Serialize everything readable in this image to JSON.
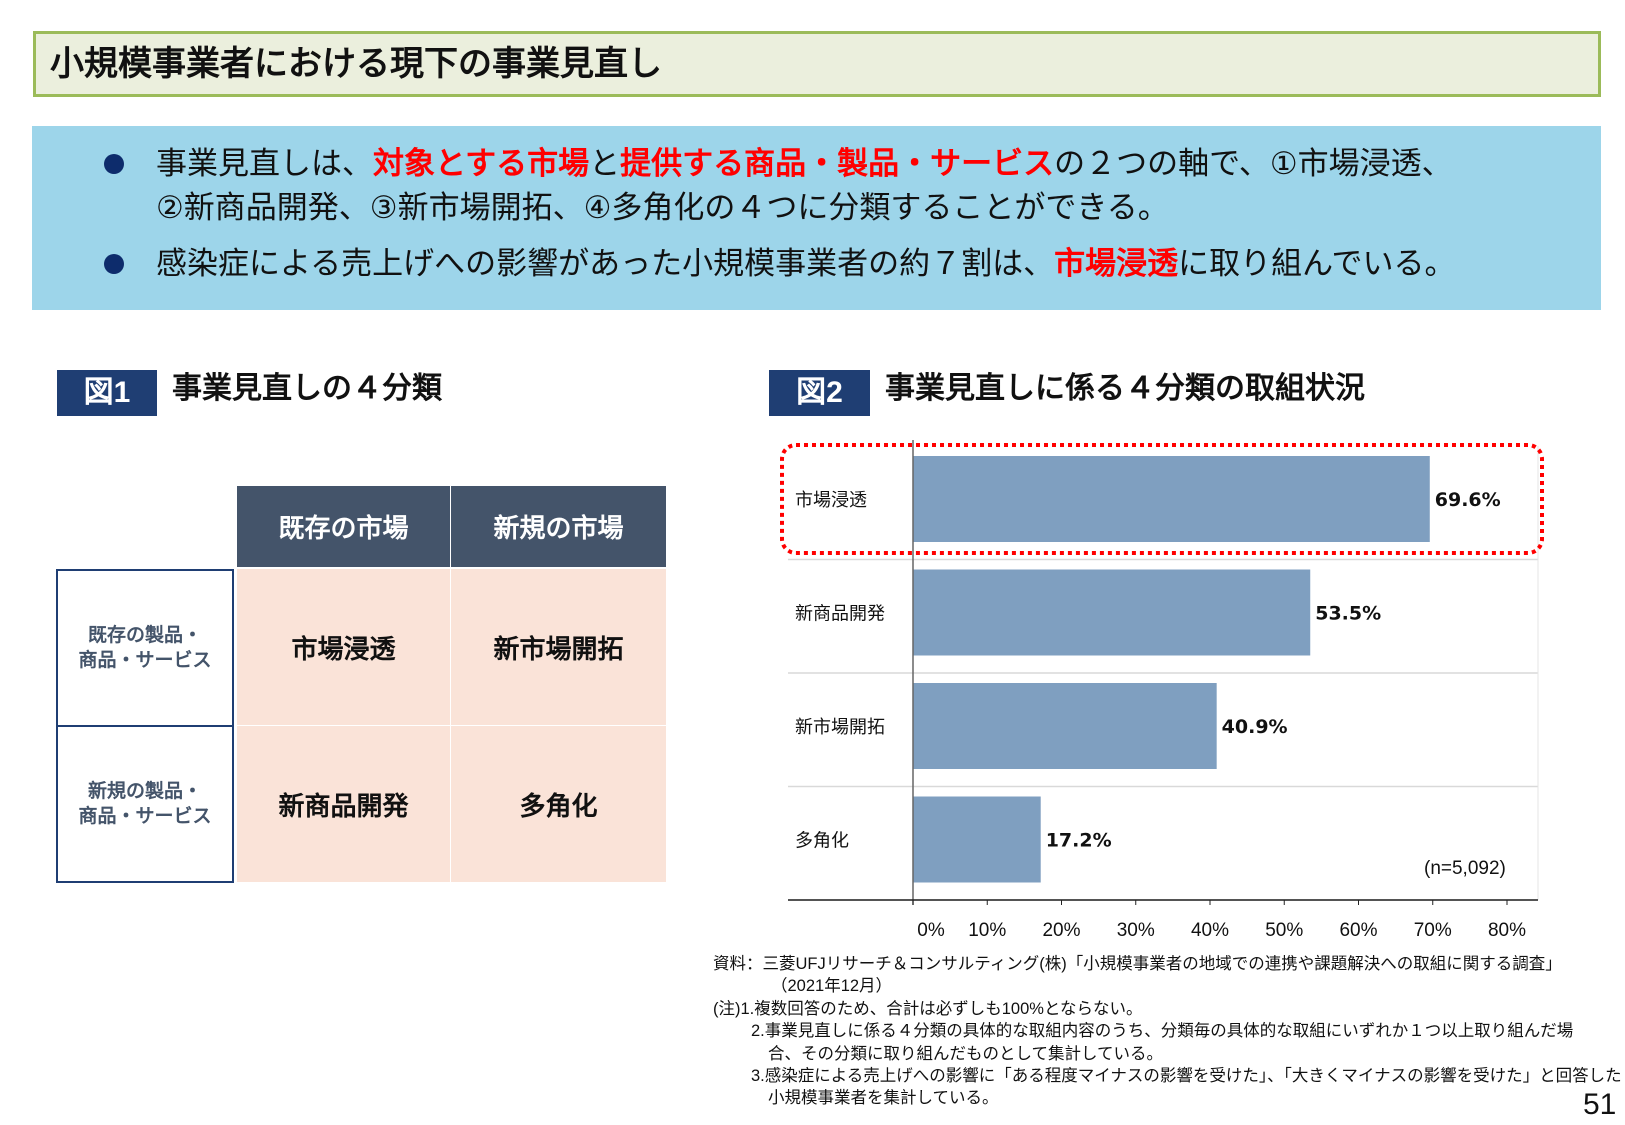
{
  "title": "小規模事業者における現下の事業見直し",
  "summary": {
    "bullet1": {
      "t1": "事業見直しは、",
      "r1": "対象とする市場",
      "t2": "と",
      "r2": "提供する商品・製品・サービス",
      "t3": "の２つの軸で、①市場浸透、",
      "line2": "②新商品開発、③新市場開拓、④多角化の４つに分類することができる。"
    },
    "bullet2": {
      "t1": "感染症による売上げへの影響があった小規模事業者の約７割は、",
      "r1": "市場浸透",
      "t2": "に取り組んでいる。"
    }
  },
  "fig1": {
    "label": "図1",
    "title": "事業見直しの４分類",
    "col_headers": [
      "既存の市場",
      "新規の市場"
    ],
    "row_headers": [
      [
        "既存の製品・",
        "商品・サービス"
      ],
      [
        "新規の製品・",
        "商品・サービス"
      ]
    ],
    "cells": [
      [
        "市場浸透",
        "新市場開拓"
      ],
      [
        "新商品開発",
        "多角化"
      ]
    ]
  },
  "fig2": {
    "label": "図2",
    "title": "事業見直しに係る４分類の取組状況",
    "note": "(n=5,092)"
  },
  "chart_data": {
    "type": "bar",
    "orientation": "horizontal",
    "categories": [
      "市場浸透",
      "新商品開発",
      "新市場開拓",
      "多角化"
    ],
    "values": [
      69.6,
      53.5,
      40.9,
      17.2
    ],
    "value_labels": [
      "69.6%",
      "53.5%",
      "40.9%",
      "17.2%"
    ],
    "xlim": [
      0,
      80
    ],
    "xticks": [
      "0%",
      "10%",
      "20%",
      "30%",
      "40%",
      "50%",
      "60%",
      "70%",
      "80%"
    ],
    "bar_color": "#7f9fc0",
    "highlight": "市場浸透",
    "highlight_color": "#ff0000"
  },
  "footnotes": [
    "資料：三菱UFJリサーチ＆コンサルティング(株)「小規模事業者の地域での連携や課題解決への取組に関する調査」",
    "（2021年12月）",
    "(注)1.複数回答のため、合計は必ずしも100%とならない。",
    "2.事業見直しに係る４分類の具体的な取組内容のうち、分類毎の具体的な取組にいずれか１つ以上取り組んだ場",
    "合、その分類に取り組んだものとして集計している。",
    "3.感染症による売上げへの影響に「ある程度マイナスの影響を受けた」、「大きくマイナスの影響を受けた」と回答した",
    "小規模事業者を集計している。"
  ],
  "page_number": "51"
}
